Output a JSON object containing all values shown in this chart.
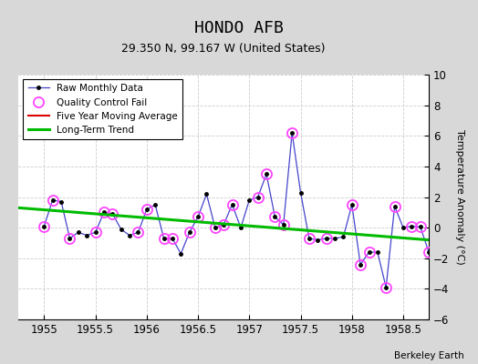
{
  "title": "HONDO AFB",
  "subtitle": "29.350 N, 99.167 W (United States)",
  "ylabel": "Temperature Anomaly (°C)",
  "credit": "Berkeley Earth",
  "xlim": [
    1954.75,
    1958.75
  ],
  "ylim": [
    -6,
    10
  ],
  "yticks": [
    -6,
    -4,
    -2,
    0,
    2,
    4,
    6,
    8,
    10
  ],
  "xticks": [
    1955,
    1955.5,
    1956,
    1956.5,
    1957,
    1957.5,
    1958,
    1958.5
  ],
  "raw_x": [
    1955.0,
    1955.083,
    1955.167,
    1955.25,
    1955.333,
    1955.417,
    1955.5,
    1955.583,
    1955.667,
    1955.75,
    1955.833,
    1955.917,
    1956.0,
    1956.083,
    1956.167,
    1956.25,
    1956.333,
    1956.417,
    1956.5,
    1956.583,
    1956.667,
    1956.75,
    1956.833,
    1956.917,
    1957.0,
    1957.083,
    1957.167,
    1957.25,
    1957.333,
    1957.417,
    1957.5,
    1957.583,
    1957.667,
    1957.75,
    1957.833,
    1957.917,
    1958.0,
    1958.083,
    1958.167,
    1958.25,
    1958.333,
    1958.417,
    1958.5,
    1958.583,
    1958.667,
    1958.75
  ],
  "raw_y": [
    0.1,
    1.8,
    1.7,
    -0.7,
    -0.3,
    -0.5,
    -0.3,
    1.0,
    0.9,
    -0.1,
    -0.5,
    -0.3,
    1.2,
    1.5,
    -0.7,
    -0.7,
    -1.7,
    -0.3,
    0.7,
    2.2,
    0.0,
    0.2,
    1.5,
    0.0,
    1.8,
    2.0,
    3.5,
    0.7,
    0.2,
    6.2,
    2.3,
    -0.7,
    -0.8,
    -0.7,
    -0.7,
    -0.6,
    1.5,
    -2.4,
    -1.6,
    -1.6,
    -3.9,
    1.4,
    0.0,
    0.1,
    0.05,
    -1.6
  ],
  "qc_fail_x": [
    1955.0,
    1955.083,
    1955.25,
    1955.5,
    1955.583,
    1955.667,
    1955.917,
    1956.0,
    1956.167,
    1956.25,
    1956.417,
    1956.5,
    1956.667,
    1956.75,
    1956.833,
    1957.083,
    1957.167,
    1957.25,
    1957.333,
    1957.417,
    1957.583,
    1957.75,
    1958.0,
    1958.083,
    1958.167,
    1958.333,
    1958.417,
    1958.583,
    1958.667,
    1958.75
  ],
  "qc_fail_y": [
    0.1,
    1.8,
    -0.7,
    -0.3,
    1.0,
    0.9,
    -0.3,
    1.2,
    -0.7,
    -0.7,
    -0.3,
    0.7,
    0.0,
    0.2,
    1.5,
    2.0,
    3.5,
    0.7,
    0.2,
    6.2,
    -0.7,
    -0.7,
    1.5,
    -2.4,
    -1.6,
    -3.9,
    1.4,
    0.1,
    0.05,
    -1.6
  ],
  "trend_x": [
    1954.75,
    1958.75
  ],
  "trend_y": [
    1.3,
    -0.8
  ],
  "line_color": "#4444cc",
  "dot_color": "#000000",
  "qc_color": "#ff44ff",
  "trend_color": "#00bb00",
  "ma_color": "#dd0000",
  "fig_bg_color": "#d8d8d8",
  "plot_bg_color": "#ffffff",
  "grid_color": "#cccccc"
}
